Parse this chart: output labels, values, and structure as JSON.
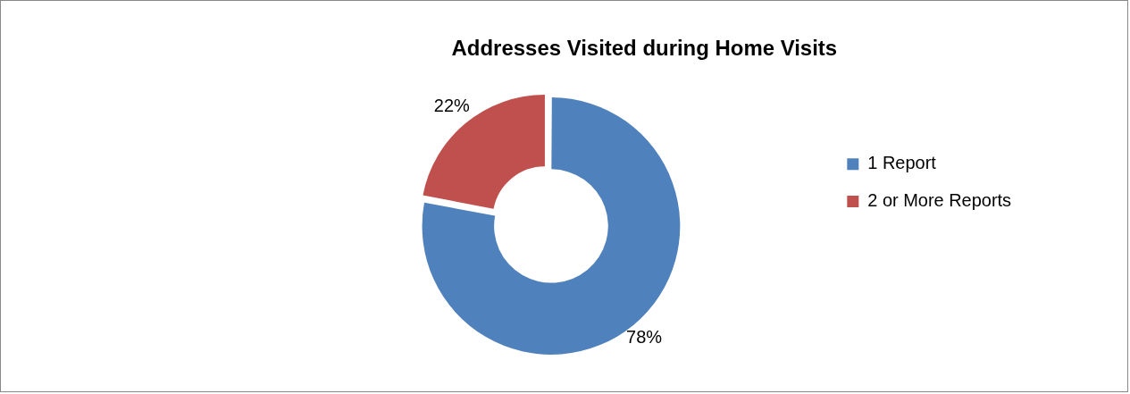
{
  "chart_data": {
    "type": "donut",
    "title": "Addresses Visited during Home Visits",
    "categories": [
      "1 Report",
      "2 or More Reports"
    ],
    "values": [
      78,
      22
    ],
    "colors": [
      "#4f81bd",
      "#c0504d"
    ],
    "value_labels": [
      "78%",
      "22%"
    ],
    "legend": "right"
  }
}
